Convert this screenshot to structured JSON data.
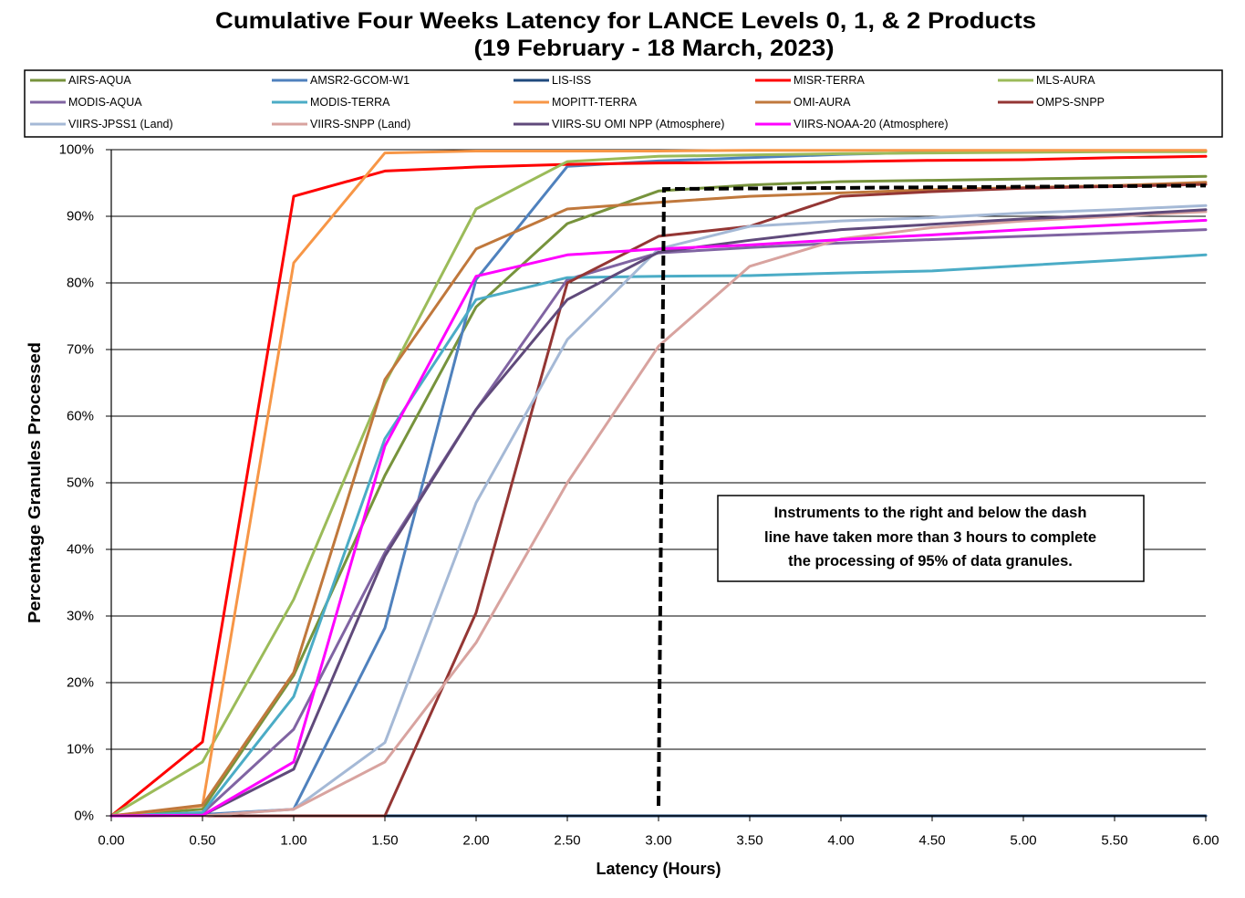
{
  "chart_data": {
    "type": "line",
    "title": "Cumulative Four Weeks Latency for LANCE Levels 0, 1, & 2 Products",
    "subtitle": "(19 February - 18 March, 2023)",
    "xlabel": "Latency (Hours)",
    "ylabel": "Percentage Granules Processed",
    "xlim": [
      0,
      6
    ],
    "ylim": [
      0,
      100
    ],
    "x_ticks": [
      "0.00",
      "0.50",
      "1.00",
      "1.50",
      "2.00",
      "2.50",
      "3.00",
      "3.50",
      "4.00",
      "4.50",
      "5.00",
      "5.50",
      "6.00"
    ],
    "y_ticks": [
      "0%",
      "10%",
      "20%",
      "30%",
      "40%",
      "50%",
      "60%",
      "70%",
      "80%",
      "90%",
      "100%"
    ],
    "grid": "horizontal",
    "legend": "top",
    "x": [
      0,
      0.5,
      1.0,
      1.5,
      2.0,
      2.5,
      3.0,
      3.5,
      4.0,
      4.5,
      5.0,
      5.5,
      6.0
    ],
    "series": [
      {
        "name": "AIRS-AQUA",
        "color": "#77933C",
        "values": [
          0,
          1.0,
          21.1,
          51.1,
          76.4,
          88.9,
          93.8,
          94.7,
          95.2,
          95.4,
          95.6,
          95.8,
          96.0
        ]
      },
      {
        "name": "AMSR2-GCOM-W1",
        "color": "#4F81BD",
        "values": [
          0,
          0.2,
          1.0,
          28.2,
          80.5,
          97.5,
          98.3,
          98.8,
          99.3,
          99.6,
          99.8,
          99.8,
          99.8
        ]
      },
      {
        "name": "LIS-ISS",
        "color": "#1F497D",
        "values": [
          0,
          0,
          0,
          0,
          0,
          0,
          0,
          0,
          0,
          0,
          0,
          0,
          0
        ]
      },
      {
        "name": "MISR-TERRA",
        "color": "#FF0000",
        "values": [
          0,
          11.1,
          93.0,
          96.8,
          97.4,
          97.8,
          98.0,
          98.1,
          98.2,
          98.4,
          98.5,
          98.8,
          99.0
        ]
      },
      {
        "name": "MLS-AURA",
        "color": "#9BBB59",
        "values": [
          0,
          8.1,
          32.5,
          64.9,
          91.1,
          98.2,
          99.0,
          99.2,
          99.4,
          99.5,
          99.6,
          99.7,
          99.7
        ]
      },
      {
        "name": "MODIS-AQUA",
        "color": "#8064A2",
        "values": [
          0,
          0.4,
          13.0,
          39.5,
          61.0,
          80.5,
          84.5,
          85.3,
          86.0,
          86.5,
          87.0,
          87.5,
          88.0
        ]
      },
      {
        "name": "MODIS-TERRA",
        "color": "#4BACC6",
        "values": [
          0,
          0.5,
          17.9,
          56.6,
          77.5,
          80.8,
          81.0,
          81.1,
          81.5,
          81.8,
          82.6,
          83.4,
          84.2
        ]
      },
      {
        "name": "MOPITT-TERRA",
        "color": "#F79646",
        "values": [
          0,
          1.5,
          83.0,
          99.5,
          99.8,
          99.8,
          99.8,
          99.9,
          99.9,
          99.9,
          99.9,
          99.9,
          99.9
        ]
      },
      {
        "name": "OMI-AURA",
        "color": "#C0783C",
        "values": [
          0,
          1.6,
          21.5,
          65.5,
          85.1,
          91.1,
          92.1,
          93.0,
          93.5,
          94.0,
          94.3,
          94.6,
          95.1
        ]
      },
      {
        "name": "OMPS-SNPP",
        "color": "#943634",
        "values": [
          0,
          0,
          0,
          0,
          30.5,
          80.0,
          87.0,
          88.5,
          93.0,
          93.7,
          94.2,
          94.5,
          94.8
        ]
      },
      {
        "name": "VIIRS-JPSS1 (Land)",
        "color": "#A5B9D6",
        "values": [
          0,
          0,
          1.0,
          11.0,
          47.0,
          71.5,
          85.1,
          88.5,
          89.3,
          89.8,
          90.5,
          91.0,
          91.6
        ]
      },
      {
        "name": "VIIRS-SNPP (Land)",
        "color": "#D8A39F",
        "values": [
          0,
          0,
          1.0,
          8.1,
          26.0,
          50.0,
          70.5,
          82.5,
          86.6,
          88.3,
          89.3,
          90.0,
          90.7
        ]
      },
      {
        "name": "VIIRS-SU OMI NPP (Atmosphere)",
        "color": "#604A7B",
        "values": [
          0,
          0.1,
          7.0,
          39.0,
          61.0,
          77.5,
          84.6,
          86.4,
          88.0,
          88.8,
          89.6,
          90.2,
          91.0
        ]
      },
      {
        "name": "VIIRS-NOAA-20 (Atmosphere)",
        "color": "#FF00FF",
        "values": [
          0,
          0.1,
          8.1,
          55.5,
          81.0,
          84.2,
          85.1,
          85.7,
          86.5,
          87.2,
          88.0,
          88.7,
          89.4
        ]
      }
    ],
    "reference_line": {
      "style": "dashed",
      "color": "#000000",
      "points": [
        [
          3.0,
          1.5
        ],
        [
          3.03,
          94.1
        ],
        [
          6.0,
          94.6
        ]
      ]
    },
    "annotation": {
      "lines": [
        "Instruments to the right and below the dash",
        "line have taken more than 3 hours to complete",
        "the processing of 95% of data granules."
      ]
    }
  }
}
